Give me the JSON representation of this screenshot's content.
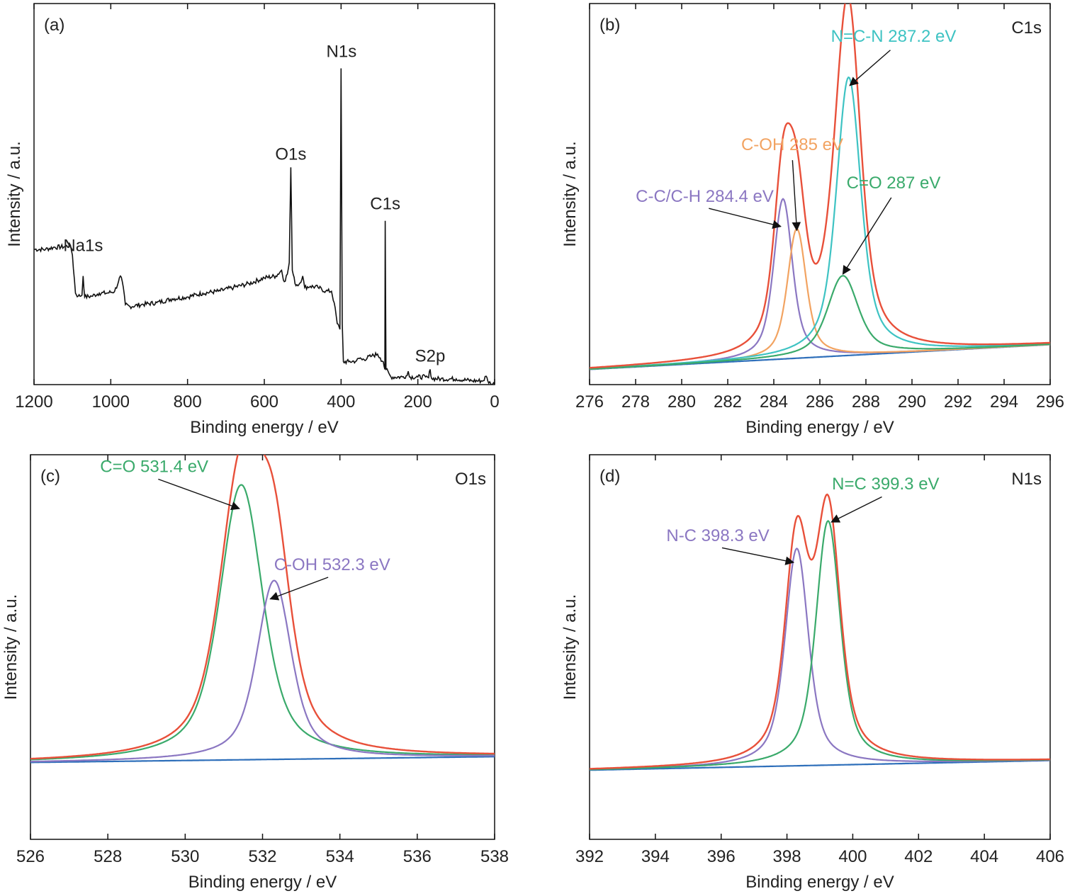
{
  "colors": {
    "envelope": "#e8503a",
    "background": "#2e6fba",
    "survey": "#111111",
    "purple": "#8b77c2",
    "orange": "#f2a361",
    "teal": "#3ec3c3",
    "green": "#3aaa6b"
  },
  "chart_data": [
    {
      "id": "a",
      "type": "line",
      "panel_label": "(a)",
      "element_label": "",
      "xlabel": "Binding energy / eV",
      "ylabel": "Intensity / a.u.",
      "xlim": [
        1200,
        0
      ],
      "x_ticks": [
        1200,
        1000,
        800,
        600,
        400,
        200,
        0
      ],
      "ylim": [
        0,
        1
      ],
      "peak_labels": [
        {
          "text": "Na1s",
          "x": 1072,
          "y": 0.35
        },
        {
          "text": "O1s",
          "x": 531,
          "y": 0.59
        },
        {
          "text": "N1s",
          "x": 399,
          "y": 0.86
        },
        {
          "text": "C1s",
          "x": 285,
          "y": 0.46
        },
        {
          "text": "S2p",
          "x": 168,
          "y": 0.06
        }
      ],
      "series": [
        {
          "color_key": "survey",
          "points": [
            [
              1200,
              0.355
            ],
            [
              1170,
              0.355
            ],
            [
              1150,
              0.36
            ],
            [
              1120,
              0.362
            ],
            [
              1105,
              0.365
            ],
            [
              1100,
              0.34
            ],
            [
              1092,
              0.24
            ],
            [
              1085,
              0.232
            ],
            [
              1075,
              0.235
            ],
            [
              1072,
              0.285
            ],
            [
              1068,
              0.23
            ],
            [
              1050,
              0.232
            ],
            [
              1030,
              0.24
            ],
            [
              1010,
              0.24
            ],
            [
              990,
              0.245
            ],
            [
              980,
              0.27
            ],
            [
              975,
              0.285
            ],
            [
              970,
              0.27
            ],
            [
              962,
              0.21
            ],
            [
              950,
              0.205
            ],
            [
              920,
              0.21
            ],
            [
              880,
              0.215
            ],
            [
              840,
              0.225
            ],
            [
              800,
              0.23
            ],
            [
              760,
              0.24
            ],
            [
              720,
              0.245
            ],
            [
              680,
              0.255
            ],
            [
              640,
              0.265
            ],
            [
              600,
              0.28
            ],
            [
              570,
              0.285
            ],
            [
              555,
              0.3
            ],
            [
              548,
              0.27
            ],
            [
              540,
              0.29
            ],
            [
              535,
              0.32
            ],
            [
              531,
              0.57
            ],
            [
              527,
              0.3
            ],
            [
              520,
              0.265
            ],
            [
              510,
              0.262
            ],
            [
              500,
              0.285
            ],
            [
              495,
              0.255
            ],
            [
              480,
              0.258
            ],
            [
              460,
              0.255
            ],
            [
              440,
              0.245
            ],
            [
              425,
              0.245
            ],
            [
              418,
              0.215
            ],
            [
              410,
              0.16
            ],
            [
              403,
              0.145
            ],
            [
              400,
              0.83
            ],
            [
              397,
              0.16
            ],
            [
              394,
              0.06
            ],
            [
              380,
              0.06
            ],
            [
              360,
              0.062
            ],
            [
              350,
              0.07
            ],
            [
              345,
              0.065
            ],
            [
              320,
              0.075
            ],
            [
              305,
              0.08
            ],
            [
              298,
              0.07
            ],
            [
              290,
              0.06
            ],
            [
              286,
              0.04
            ],
            [
              285,
              0.43
            ],
            [
              283,
              0.04
            ],
            [
              270,
              0.02
            ],
            [
              240,
              0.02
            ],
            [
              228,
              0.024
            ],
            [
              225,
              0.035
            ],
            [
              222,
              0.02
            ],
            [
              200,
              0.02
            ],
            [
              180,
              0.02
            ],
            [
              172,
              0.018
            ],
            [
              168,
              0.04
            ],
            [
              164,
              0.016
            ],
            [
              140,
              0.015
            ],
            [
              100,
              0.015
            ],
            [
              60,
              0.01
            ],
            [
              30,
              0.01
            ],
            [
              22,
              0.022
            ],
            [
              18,
              0.01
            ],
            [
              10,
              0.002
            ],
            [
              0,
              0.002
            ]
          ]
        }
      ]
    },
    {
      "id": "b",
      "type": "line",
      "panel_label": "(b)",
      "element_label": "C1s",
      "xlabel": "Binding energy / eV",
      "ylabel": "Intensity / a.u.",
      "xlim": [
        276,
        296
      ],
      "x_ticks": [
        276,
        278,
        280,
        282,
        284,
        286,
        288,
        290,
        292,
        294,
        296
      ],
      "ylim": [
        0,
        1
      ],
      "background_line": [
        [
          276,
          0.04
        ],
        [
          296,
          0.105
        ]
      ],
      "components": [
        {
          "name": "C-C/C-H 284.4 eV",
          "color_key": "purple",
          "center": 284.4,
          "height": 0.42,
          "width": 0.55
        },
        {
          "name": "C-OH 285 eV",
          "color_key": "orange",
          "center": 285.0,
          "height": 0.34,
          "width": 0.55
        },
        {
          "name": "N=C-N 287.2 eV",
          "color_key": "teal",
          "center": 287.25,
          "height": 0.73,
          "width": 0.72
        },
        {
          "name": "C=O 287 eV",
          "color_key": "green",
          "center": 287.0,
          "height": 0.21,
          "width": 0.9
        }
      ],
      "annotations": [
        {
          "text": "C-C/C-H 284.4 eV",
          "label_x": 281.0,
          "label_y": 0.48,
          "tip_x": 284.3,
          "tip_y": 0.415
        },
        {
          "text": "C-OH 285 eV",
          "label_x": 284.8,
          "label_y": 0.615,
          "tip_x": 285.0,
          "tip_y": 0.405
        },
        {
          "text": "N=C-N 287.2 eV",
          "label_x": 289.2,
          "label_y": 0.9,
          "tip_x": 287.3,
          "tip_y": 0.785
        },
        {
          "text": "C=O 287 eV",
          "label_x": 289.2,
          "label_y": 0.515,
          "tip_x": 287.0,
          "tip_y": 0.29
        }
      ]
    },
    {
      "id": "c",
      "type": "line",
      "panel_label": "(c)",
      "element_label": "O1s",
      "xlabel": "Binding energy / eV",
      "ylabel": "Intensity / a.u.",
      "xlim": [
        526,
        538
      ],
      "x_ticks": [
        526,
        528,
        530,
        532,
        534,
        536,
        538
      ],
      "ylim": [
        0,
        1
      ],
      "background_line": [
        [
          526,
          0.2
        ],
        [
          538,
          0.215
        ]
      ],
      "components": [
        {
          "name": "C=O 531.4 eV",
          "color_key": "green",
          "center": 531.45,
          "height": 0.715,
          "width": 0.75
        },
        {
          "name": "C-OH 532.3 eV",
          "color_key": "purple",
          "center": 532.3,
          "height": 0.465,
          "width": 0.6
        }
      ],
      "annotations": [
        {
          "text": "C=O 531.4 eV",
          "label_x": 529.2,
          "label_y": 0.955,
          "tip_x": 531.4,
          "tip_y": 0.86
        },
        {
          "text": "C-OH 532.3 eV",
          "label_x": 533.8,
          "label_y": 0.7,
          "tip_x": 532.2,
          "tip_y": 0.625
        }
      ]
    },
    {
      "id": "d",
      "type": "line",
      "panel_label": "(d)",
      "element_label": "N1s",
      "xlabel": "Binding energy / eV",
      "ylabel": "Intensity / a.u.",
      "xlim": [
        392,
        406
      ],
      "x_ticks": [
        392,
        394,
        396,
        398,
        400,
        402,
        404,
        406
      ],
      "ylim": [
        0,
        1
      ],
      "background_line": [
        [
          392,
          0.18
        ],
        [
          406,
          0.205
        ]
      ],
      "components": [
        {
          "name": "N-C 398.3 eV",
          "color_key": "purple",
          "center": 398.3,
          "height": 0.565,
          "width": 0.48
        },
        {
          "name": "N=C 399.3 eV",
          "color_key": "green",
          "center": 399.25,
          "height": 0.635,
          "width": 0.5
        }
      ],
      "annotations": [
        {
          "text": "N-C 398.3 eV",
          "label_x": 395.9,
          "label_y": 0.775,
          "tip_x": 398.2,
          "tip_y": 0.72
        },
        {
          "text": "N=C 399.3 eV",
          "label_x": 401.0,
          "label_y": 0.91,
          "tip_x": 399.35,
          "tip_y": 0.825
        }
      ]
    }
  ]
}
